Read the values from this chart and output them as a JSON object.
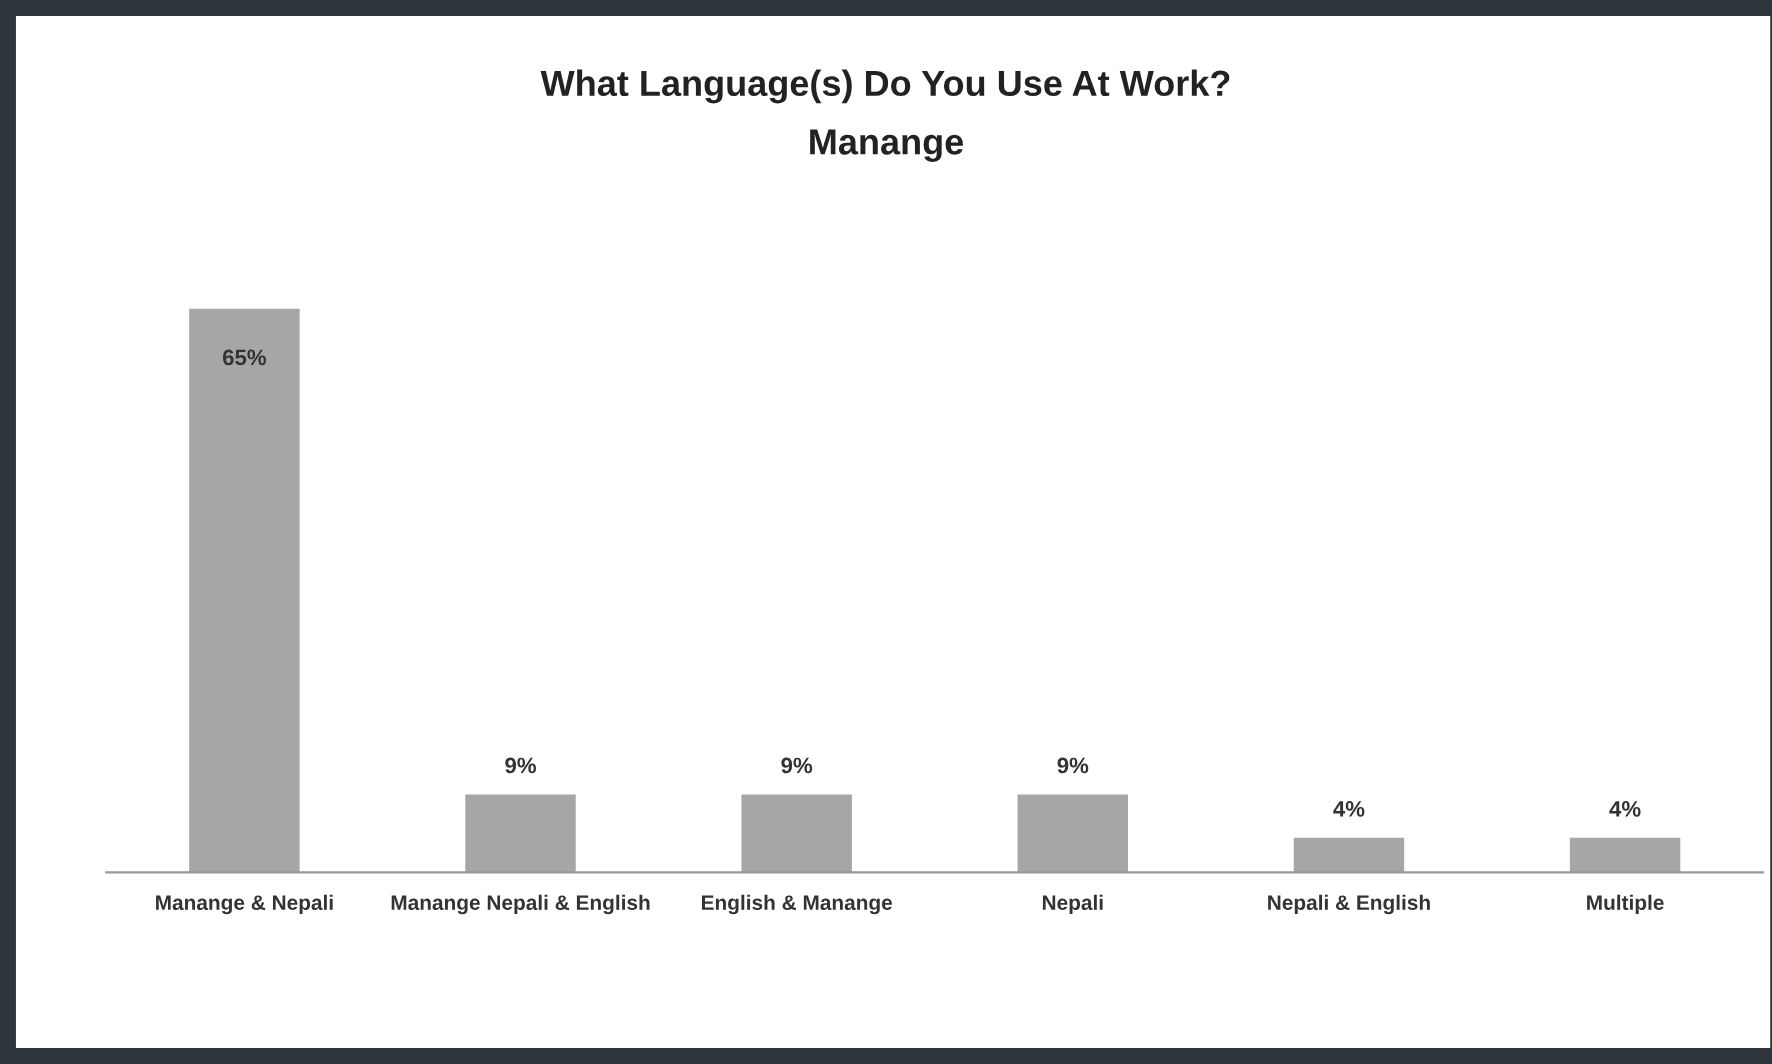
{
  "chart_data": {
    "type": "bar",
    "title": "What Language(s) Do You Use At Work?",
    "subtitle": "Manange",
    "categories": [
      "Manange & Nepali",
      "Manange Nepali & English",
      "English & Manange",
      "Nepali",
      "Nepali & English",
      "Multiple"
    ],
    "values": [
      65,
      9,
      9,
      9,
      4,
      4
    ],
    "value_labels": [
      "65%",
      "9%",
      "9%",
      "9%",
      "4%",
      "4%"
    ],
    "color": "#a6a6a6",
    "grid": false,
    "legend": false
  }
}
